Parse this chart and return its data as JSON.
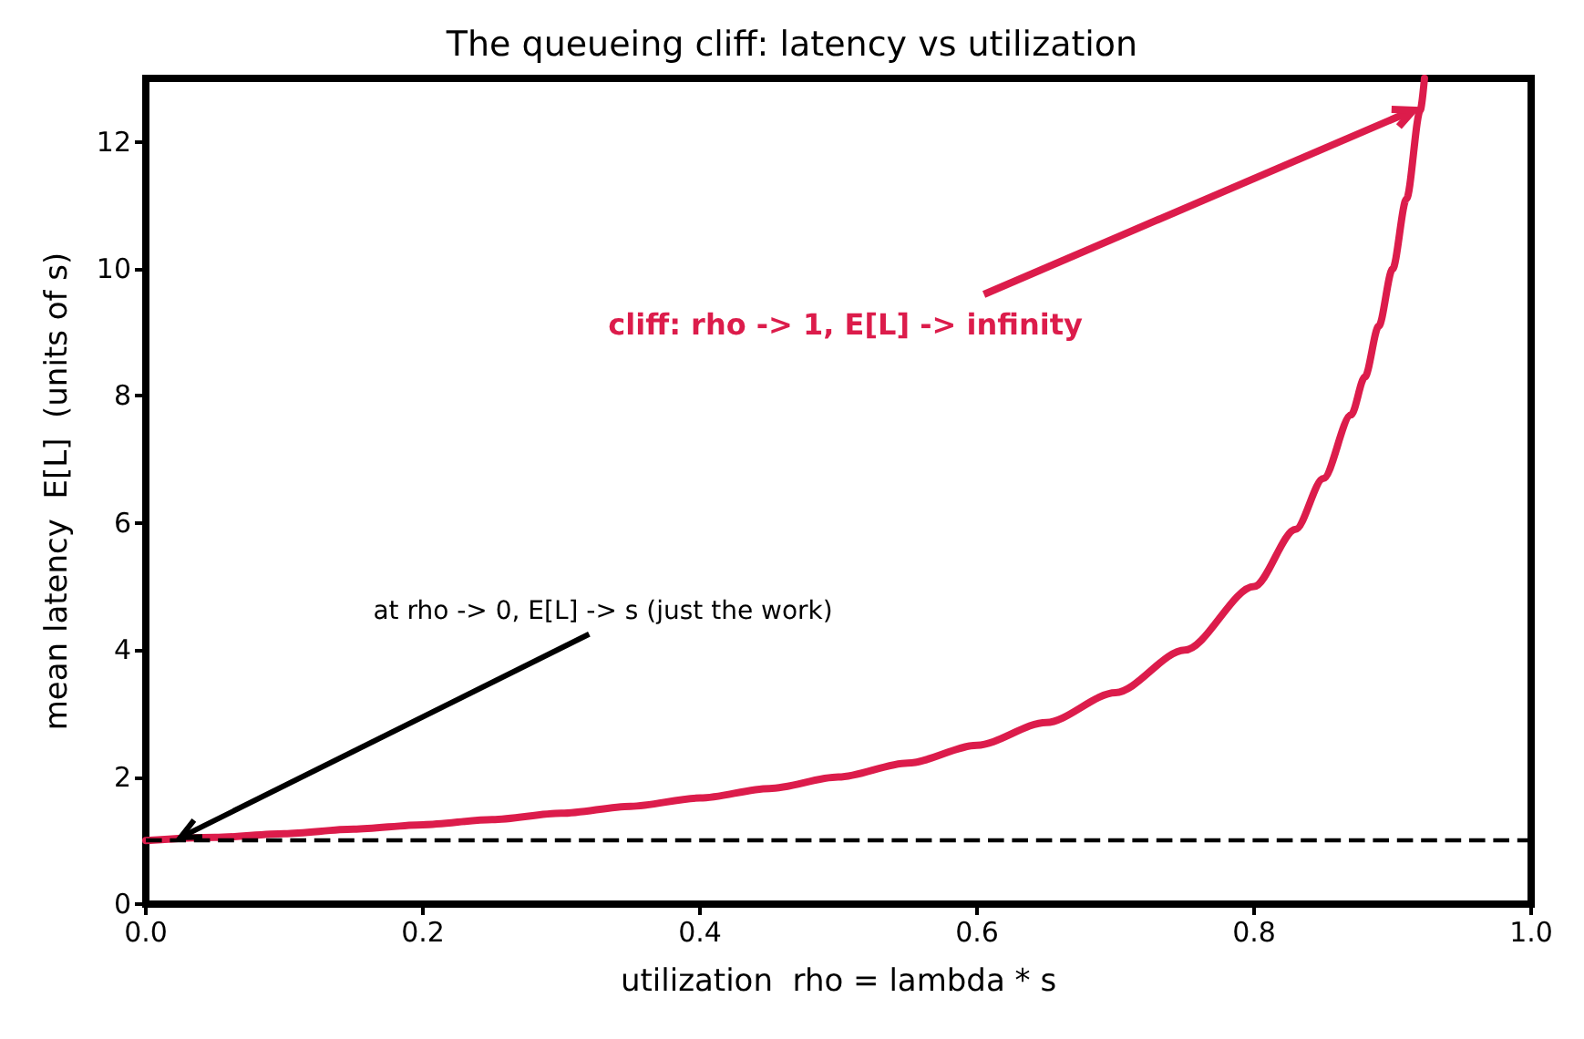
{
  "chart_data": {
    "type": "line",
    "title": "The queueing cliff: latency vs utilization",
    "xlabel": "utilization  rho = lambda * s",
    "ylabel": "mean latency  E[L]  (units of s)",
    "x": [
      0,
      0.05,
      0.1,
      0.15,
      0.2,
      0.25,
      0.3,
      0.35,
      0.4,
      0.45,
      0.5,
      0.55,
      0.6,
      0.65,
      0.7,
      0.75,
      0.8,
      0.83,
      0.85,
      0.87,
      0.88,
      0.89,
      0.9,
      0.91,
      0.92,
      0.923
    ],
    "series": [
      {
        "color": "#dc1c4b",
        "values": [
          1,
          1.05,
          1.11,
          1.18,
          1.25,
          1.33,
          1.43,
          1.54,
          1.67,
          1.82,
          2,
          2.22,
          2.5,
          2.86,
          3.33,
          4,
          5,
          5.9,
          6.7,
          7.7,
          8.3,
          9.1,
          10,
          11.1,
          12.5,
          13
        ]
      }
    ],
    "xlim": [
      0,
      1
    ],
    "xticks": [
      {
        "value": 0,
        "label": "0.0"
      },
      0.2,
      0.4,
      0.6,
      0.8,
      {
        "value": 1,
        "label": "1.0"
      }
    ],
    "ylim": [
      0,
      13
    ],
    "yticks": [
      0,
      2,
      4,
      6,
      8,
      10,
      12
    ],
    "ref_lines": [
      {
        "axis": "y",
        "value": 1,
        "color": "#000000",
        "line_style": "dashed"
      }
    ],
    "annotations": [
      {
        "text": "cliff: rho -> 1, E[L] -> infinity",
        "x": 0.915,
        "y": 12.5
      },
      {
        "text": "at rho -> 0, E[L] -> s (just the work)",
        "x": 0.025,
        "y": 1.05
      }
    ],
    "grid": false,
    "marker": "none",
    "line_style": "solid"
  }
}
